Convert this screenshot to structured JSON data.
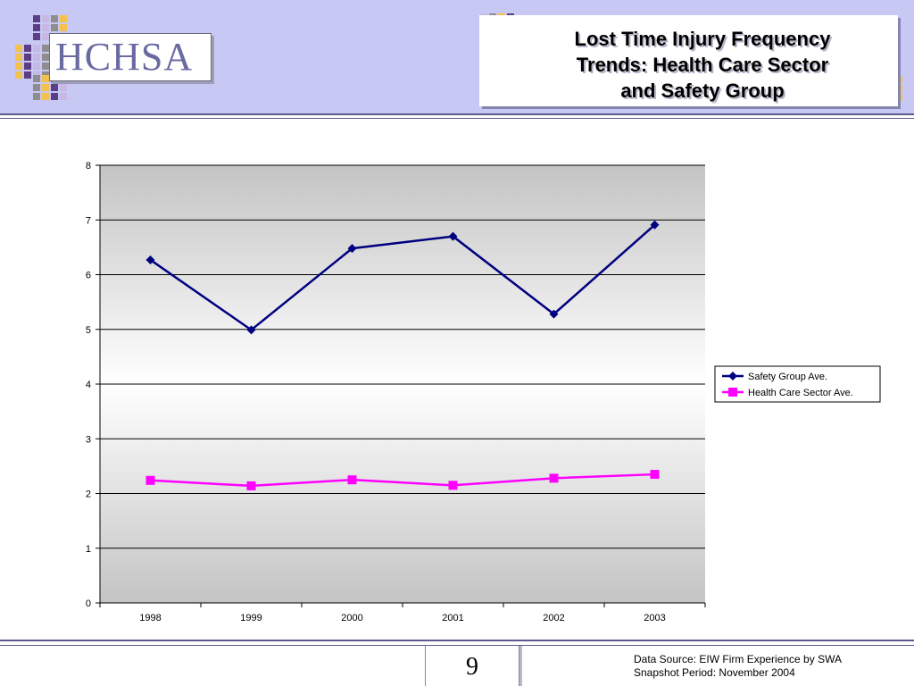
{
  "header": {
    "logo_text": "HCHSA",
    "title_lines": [
      "Lost Time Injury Frequency",
      "Trends: Health Care Sector",
      "and Safety Group"
    ]
  },
  "colors": {
    "header_band": "#c8c8f4",
    "tile_purple": "#5b3f86",
    "tile_gold": "#f2c14e",
    "tile_gray": "#8e8e8e",
    "tile_lavender": "#c7b8e6"
  },
  "chart_data": {
    "type": "line",
    "categories": [
      "1998",
      "1999",
      "2000",
      "2001",
      "2002",
      "2003"
    ],
    "series": [
      {
        "name": "Safety Group Ave.",
        "values": [
          6.27,
          4.99,
          6.48,
          6.7,
          5.28,
          6.91
        ],
        "color": "#000080",
        "marker": "diamond"
      },
      {
        "name": "Health Care Sector Ave.",
        "values": [
          2.24,
          2.14,
          2.25,
          2.15,
          2.28,
          2.35
        ],
        "color": "#ff00ff",
        "marker": "square"
      }
    ],
    "y_ticks": [
      "0",
      "1",
      "2",
      "3",
      "4",
      "5",
      "6",
      "7",
      "8"
    ],
    "ylim": [
      0,
      8
    ],
    "grid": true,
    "legend_position": "right",
    "title": "",
    "xlabel": "",
    "ylabel": ""
  },
  "footer": {
    "page_number": "9",
    "source_line1": "Data Source: EIW Firm Experience by SWA",
    "source_line2": "Snapshot Period: November 2004"
  }
}
